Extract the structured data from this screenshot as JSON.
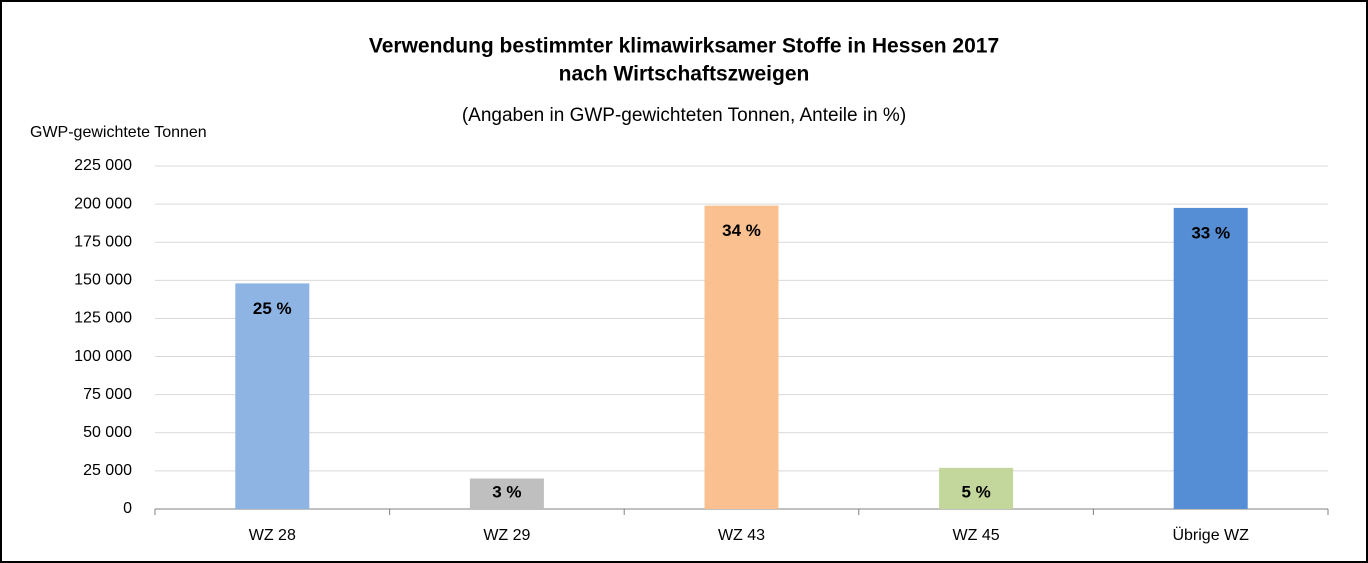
{
  "chart_data": {
    "type": "bar",
    "title": "Verwendung bestimmter klimawirksamer Stoffe in Hessen 2017",
    "title_line2": "nach Wirtschaftszweigen",
    "subtitle": "(Angaben in GWP-gewichteten Tonnen, Anteile in %)",
    "y_label": "GWP-gewichtete Tonnen",
    "categories": [
      "WZ 28",
      "WZ 29",
      "WZ 43",
      "WZ 45",
      "Übrige WZ"
    ],
    "values": [
      148000,
      20000,
      199000,
      27000,
      197500
    ],
    "colors": [
      "#8eb4e3",
      "#bfbfbf",
      "#fac090",
      "#c3d69b",
      "#558ed5"
    ],
    "shares": [
      25,
      3,
      34,
      5,
      33
    ],
    "share_labels": [
      "25 %",
      "3 %",
      "34 %",
      "5 %",
      "33 %"
    ],
    "ylim": [
      0,
      225000
    ],
    "yticks": [
      0,
      {
        "value": 25000,
        "label": "25 000"
      },
      {
        "value": 50000,
        "label": "50 000"
      },
      {
        "value": 75000,
        "label": "75 000"
      },
      {
        "value": 100000,
        "label": "100 000"
      },
      {
        "value": 125000,
        "label": "125 000"
      },
      {
        "value": 150000,
        "label": "150 000"
      },
      {
        "value": 175000,
        "label": "175 000"
      },
      {
        "value": 200000,
        "label": "200 000"
      },
      {
        "value": 225000,
        "label": "225 000"
      }
    ],
    "grid": true
  }
}
